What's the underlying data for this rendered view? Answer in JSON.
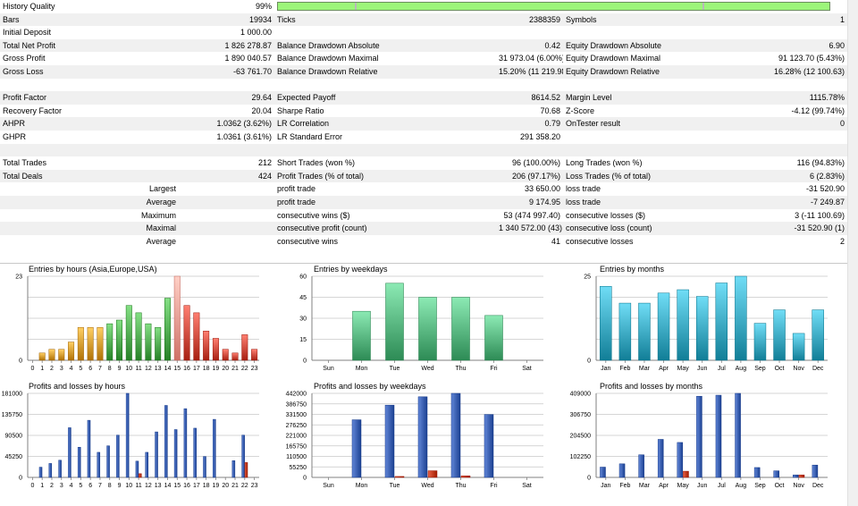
{
  "stats": {
    "history_quality": {
      "label": "History Quality",
      "value": "99%",
      "fraction": 0.99
    },
    "rows": [
      {
        "alt": true,
        "c1": "Bars",
        "c2": "19934",
        "c3": "Ticks",
        "c4": "2388359",
        "c5": "Symbols",
        "c6": "1"
      },
      {
        "alt": false,
        "c1": "Initial Deposit",
        "c2": "1 000.00",
        "c3": "",
        "c4": "",
        "c5": "",
        "c6": ""
      },
      {
        "alt": true,
        "c1": "Total Net Profit",
        "c2": "1 826 278.87",
        "c3": "Balance Drawdown Absolute",
        "c4": "0.42",
        "c5": "Equity Drawdown Absolute",
        "c6": "6.90"
      },
      {
        "alt": false,
        "c1": "Gross Profit",
        "c2": "1 890 040.57",
        "c3": "Balance Drawdown Maximal",
        "c4": "31 973.04 (6.00%)",
        "c5": "Equity Drawdown Maximal",
        "c6": "91 123.70 (5.43%)"
      },
      {
        "alt": true,
        "c1": "Gross Loss",
        "c2": "-63 761.70",
        "c3": "Balance Drawdown Relative",
        "c4": "15.20% (11 219.98)",
        "c5": "Equity Drawdown Relative",
        "c6": "16.28% (12 100.63)"
      },
      {
        "alt": false,
        "c1": "",
        "c2": "",
        "c3": "",
        "c4": "",
        "c5": "",
        "c6": ""
      },
      {
        "alt": true,
        "c1": "Profit Factor",
        "c2": "29.64",
        "c3": "Expected Payoff",
        "c4": "8614.52",
        "c5": "Margin Level",
        "c6": "1115.78%"
      },
      {
        "alt": false,
        "c1": "Recovery Factor",
        "c2": "20.04",
        "c3": "Sharpe Ratio",
        "c4": "70.68",
        "c5": "Z-Score",
        "c6": "-4.12 (99.74%)"
      },
      {
        "alt": true,
        "c1": "AHPR",
        "c2": "1.0362 (3.62%)",
        "c3": "LR Correlation",
        "c4": "0.79",
        "c5": "OnTester result",
        "c6": "0"
      },
      {
        "alt": false,
        "c1": "GHPR",
        "c2": "1.0361 (3.61%)",
        "c3": "LR Standard Error",
        "c4": "291 358.20",
        "c5": "",
        "c6": ""
      },
      {
        "alt": true,
        "c1": "",
        "c2": "",
        "c3": "",
        "c4": "",
        "c5": "",
        "c6": ""
      },
      {
        "alt": false,
        "c1": "Total Trades",
        "c2": "212",
        "c3": "Short Trades (won %)",
        "c4": "96 (100.00%)",
        "c5": "Long Trades (won %)",
        "c6": "116 (94.83%)"
      },
      {
        "alt": true,
        "c1": "Total Deals",
        "c2": "424",
        "c3": "Profit Trades (% of total)",
        "c4": "206 (97.17%)",
        "c5": "Loss Trades (% of total)",
        "c6": "6 (2.83%)"
      },
      {
        "alt": false,
        "c1": "Largest",
        "c1r": true,
        "c2": "",
        "c3": "profit trade",
        "c4": "33 650.00",
        "c5": "loss trade",
        "c6": "-31 520.90"
      },
      {
        "alt": true,
        "c1": "Average",
        "c1r": true,
        "c2": "",
        "c3": "profit trade",
        "c4": "9 174.95",
        "c5": "loss trade",
        "c6": "-7 249.87"
      },
      {
        "alt": false,
        "c1": "Maximum",
        "c1r": true,
        "c2": "",
        "c3": "consecutive wins ($)",
        "c4": "53 (474 997.40)",
        "c5": "consecutive losses ($)",
        "c6": "3 (-11 100.69)"
      },
      {
        "alt": true,
        "c1": "Maximal",
        "c1r": true,
        "c2": "",
        "c3": "consecutive profit (count)",
        "c4": "1 340 572.00 (43)",
        "c5": "consecutive loss (count)",
        "c6": "-31 520.90 (1)"
      },
      {
        "alt": false,
        "c1": "Average",
        "c1r": true,
        "c2": "",
        "c3": "consecutive wins",
        "c4": "41",
        "c5": "consecutive losses",
        "c6": "2"
      }
    ]
  },
  "chart_data": [
    {
      "id": "entries-hours",
      "type": "bar",
      "title": "Entries by hours (Asia,Europe,USA)",
      "categories": [
        "0",
        "1",
        "2",
        "3",
        "4",
        "5",
        "6",
        "7",
        "8",
        "9",
        "10",
        "11",
        "12",
        "13",
        "14",
        "15",
        "16",
        "17",
        "18",
        "19",
        "20",
        "21",
        "22",
        "23"
      ],
      "values": [
        0,
        2,
        3,
        3,
        5,
        9,
        9,
        9,
        10,
        11,
        15,
        13,
        10,
        9,
        17,
        23,
        15,
        13,
        8,
        6,
        3,
        2,
        7,
        3
      ],
      "colors": [
        "#c98a1e",
        "#c98a1e",
        "#c98a1e",
        "#c98a1e",
        "#c98a1e",
        "#c98a1e",
        "#c98a1e",
        "#c98a1e",
        "#3f9a3f",
        "#3f9a3f",
        "#3f9a3f",
        "#3f9a3f",
        "#3f9a3f",
        "#3f9a3f",
        "#3f9a3f",
        "#e88a80",
        "#c0392b",
        "#c0392b",
        "#c0392b",
        "#c0392b",
        "#c0392b",
        "#c0392b",
        "#c0392b",
        "#c0392b"
      ],
      "ylim": [
        0,
        23
      ],
      "yticks": [
        "0",
        "23"
      ],
      "grid": true
    },
    {
      "id": "entries-weekdays",
      "type": "bar",
      "title": "Entries by weekdays",
      "categories": [
        "Sun",
        "Mon",
        "Tue",
        "Wed",
        "Thu",
        "Fri",
        "Sat"
      ],
      "values": [
        0,
        35,
        55,
        45,
        45,
        32,
        0
      ],
      "colors": [
        "#46a46e",
        "#46a46e",
        "#46a46e",
        "#46a46e",
        "#46a46e",
        "#46a46e",
        "#46a46e"
      ],
      "ylim": [
        0,
        60
      ],
      "yticks": [
        "0",
        "15",
        "30",
        "45",
        "60"
      ],
      "grid": true
    },
    {
      "id": "entries-months",
      "type": "bar",
      "title": "Entries by months",
      "categories": [
        "Jan",
        "Feb",
        "Mar",
        "Apr",
        "May",
        "Jun",
        "Jul",
        "Aug",
        "Sep",
        "Oct",
        "Nov",
        "Dec"
      ],
      "values": [
        22,
        17,
        17,
        20,
        21,
        19,
        23,
        25,
        11,
        15,
        8,
        15
      ],
      "colors": [
        "#2a97b0",
        "#2a97b0",
        "#2a97b0",
        "#2a97b0",
        "#2a97b0",
        "#2a97b0",
        "#2a97b0",
        "#2a97b0",
        "#2a97b0",
        "#2a97b0",
        "#2a97b0",
        "#2a97b0"
      ],
      "ylim": [
        0,
        25
      ],
      "yticks": [
        "0",
        "25"
      ],
      "grid": true
    },
    {
      "id": "pnl-hours",
      "type": "bar",
      "title": "Profits and losses by hours",
      "categories": [
        "0",
        "1",
        "2",
        "3",
        "4",
        "5",
        "6",
        "7",
        "8",
        "9",
        "10",
        "11",
        "12",
        "13",
        "14",
        "15",
        "16",
        "17",
        "18",
        "19",
        "20",
        "21",
        "22",
        "23"
      ],
      "series": [
        {
          "values": [
            0,
            22000,
            30000,
            37000,
            107000,
            65000,
            123000,
            54000,
            68000,
            91000,
            181000,
            35000,
            54000,
            98000,
            155000,
            103000,
            148000,
            106000,
            45000,
            125000,
            0,
            36000,
            91000,
            0
          ],
          "color": "#3a5fb0"
        },
        {
          "values": [
            0,
            0,
            0,
            0,
            0,
            0,
            0,
            0,
            0,
            0,
            0,
            8000,
            0,
            0,
            0,
            0,
            0,
            0,
            0,
            0,
            0,
            0,
            32000,
            0
          ],
          "color": "#c03a1e"
        }
      ],
      "ylim": [
        0,
        181000
      ],
      "yticks": [
        "0",
        "45250",
        "90500",
        "135750",
        "181000"
      ],
      "grid": true
    },
    {
      "id": "pnl-weekdays",
      "type": "bar",
      "title": "Profits and losses by weekdays",
      "categories": [
        "Sun",
        "Mon",
        "Tue",
        "Wed",
        "Thu",
        "Fri",
        "Sat"
      ],
      "series": [
        {
          "values": [
            0,
            303000,
            380000,
            424000,
            442000,
            331000,
            0
          ],
          "color": "#3a5fb0"
        },
        {
          "values": [
            0,
            0,
            5000,
            35000,
            8000,
            0,
            0
          ],
          "color": "#c03a1e"
        }
      ],
      "ylim": [
        0,
        442000
      ],
      "yticks": [
        "0",
        "55250",
        "110500",
        "165750",
        "221000",
        "276250",
        "331500",
        "386750",
        "442000"
      ],
      "grid": true
    },
    {
      "id": "pnl-months",
      "type": "bar",
      "title": "Profits and losses by months",
      "categories": [
        "Jan",
        "Feb",
        "Mar",
        "Apr",
        "May",
        "Jun",
        "Jul",
        "Aug",
        "Sep",
        "Oct",
        "Nov",
        "Dec"
      ],
      "series": [
        {
          "values": [
            50000,
            66000,
            110000,
            185000,
            170000,
            395000,
            400000,
            409000,
            48000,
            32000,
            12000,
            60000
          ],
          "color": "#3a5fb0"
        },
        {
          "values": [
            0,
            0,
            0,
            0,
            30000,
            0,
            0,
            0,
            0,
            0,
            12000,
            0
          ],
          "color": "#c03a1e"
        }
      ],
      "ylim": [
        0,
        409000
      ],
      "yticks": [
        "0",
        "102250",
        "204500",
        "306750",
        "409000"
      ],
      "grid": true
    }
  ]
}
